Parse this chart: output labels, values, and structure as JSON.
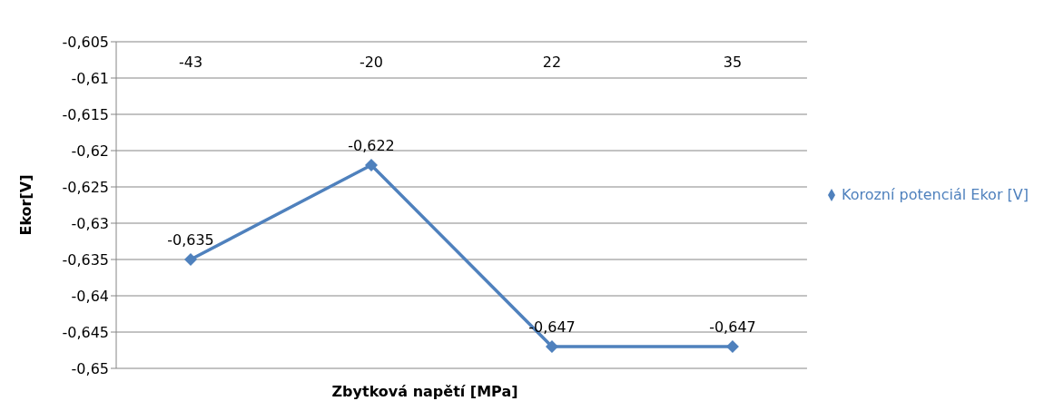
{
  "chart_data": {
    "type": "line",
    "xlabel": "Zbytková napětí [MPa]",
    "ylabel": "Ekor[V]",
    "categories": [
      "-43",
      "-20",
      "22",
      "35"
    ],
    "series": [
      {
        "name": "Korozní potenciál Ekor [V]",
        "color": "#4f81bd",
        "values": [
          -0.635,
          -0.622,
          -0.647,
          -0.647
        ],
        "value_labels": [
          "-0,635",
          "-0,622",
          "-0,647",
          "-0,647"
        ]
      }
    ],
    "ylim": [
      -0.65,
      -0.605
    ],
    "yticks": [
      {
        "value": -0.65,
        "label": "-0,65"
      },
      {
        "value": -0.645,
        "label": "-0,645"
      },
      {
        "value": -0.64,
        "label": "-0,64"
      },
      {
        "value": -0.635,
        "label": "-0,635"
      },
      {
        "value": -0.63,
        "label": "-0,63"
      },
      {
        "value": -0.625,
        "label": "-0,625"
      },
      {
        "value": -0.62,
        "label": "-0,62"
      },
      {
        "value": -0.615,
        "label": "-0,615"
      },
      {
        "value": -0.61,
        "label": "-0,61"
      },
      {
        "value": -0.605,
        "label": "-0,605"
      }
    ],
    "grid": "y",
    "legend": "right",
    "marker": "diamond",
    "line_style": "solid"
  }
}
